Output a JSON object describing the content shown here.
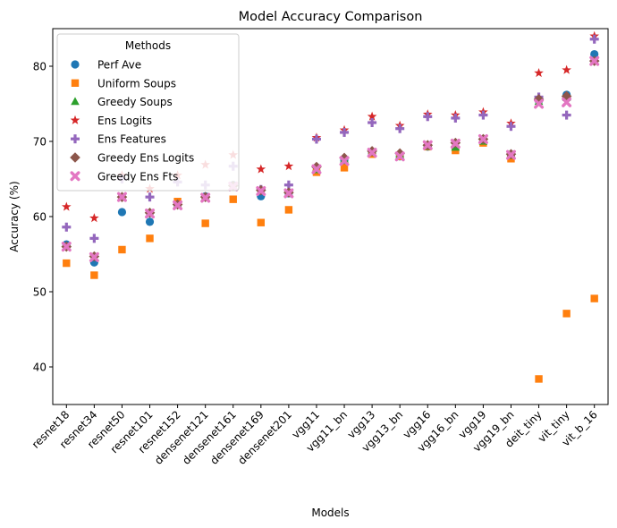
{
  "chart_data": {
    "type": "scatter",
    "title": "Model Accuracy Comparison",
    "xlabel": "Models",
    "ylabel": "Accuracy (%)",
    "ylim": [
      35,
      85
    ],
    "yticks": [
      40,
      50,
      60,
      70,
      80
    ],
    "grid": false,
    "legend_title": "Methods",
    "legend_position": "top-left",
    "categories": [
      "resnet18",
      "resnet34",
      "resnet50",
      "resnet101",
      "resnet152",
      "densenet121",
      "densenet161",
      "densenet169",
      "densenet201",
      "vgg11",
      "vgg11_bn",
      "vgg13",
      "vgg13_bn",
      "vgg16",
      "vgg16_bn",
      "vgg19",
      "vgg19_bn",
      "deit_tiny",
      "vit_tiny",
      "vit_b_16"
    ],
    "series": [
      {
        "name": "Perf Ave",
        "marker": "circle",
        "color": "#1f77b4",
        "values": [
          56.3,
          53.9,
          60.6,
          59.3,
          61.6,
          62.7,
          64.2,
          62.7,
          63.1,
          66.0,
          67.5,
          68.4,
          68.0,
          69.3,
          69.1,
          69.9,
          68.1,
          75.4,
          76.2,
          81.6
        ]
      },
      {
        "name": "Uniform Soups",
        "marker": "square",
        "color": "#ff7f0e",
        "values": [
          53.8,
          52.2,
          55.6,
          57.1,
          62.0,
          59.1,
          62.3,
          59.2,
          60.9,
          65.9,
          66.5,
          68.3,
          68.0,
          69.3,
          68.8,
          69.8,
          67.7,
          38.4,
          47.1,
          49.1
        ]
      },
      {
        "name": "Greedy Soups",
        "marker": "triangle",
        "color": "#2ca02c",
        "values": [
          56.0,
          54.6,
          62.6,
          60.4,
          61.6,
          62.6,
          64.0,
          63.4,
          63.1,
          66.2,
          67.6,
          68.5,
          68.2,
          69.3,
          69.2,
          70.0,
          68.1,
          75.3,
          75.8,
          80.7
        ]
      },
      {
        "name": "Ens Logits",
        "marker": "star",
        "color": "#d62728",
        "values": [
          61.3,
          59.8,
          65.5,
          63.7,
          65.5,
          66.9,
          68.2,
          66.3,
          66.7,
          70.5,
          71.5,
          73.3,
          72.1,
          73.6,
          73.5,
          73.9,
          72.4,
          79.1,
          79.5,
          84.0
        ]
      },
      {
        "name": "Ens Features",
        "marker": "plus",
        "color": "#9467bd",
        "values": [
          58.6,
          57.1,
          65.0,
          62.6,
          64.6,
          64.2,
          66.7,
          63.6,
          64.2,
          70.3,
          71.2,
          72.5,
          71.7,
          73.3,
          73.1,
          73.5,
          72.0,
          75.9,
          73.5,
          83.6
        ]
      },
      {
        "name": "Greedy Ens Logits",
        "marker": "diamond",
        "color": "#8c564b",
        "values": [
          56.0,
          54.7,
          62.6,
          60.5,
          61.6,
          62.6,
          64.1,
          63.5,
          63.2,
          66.6,
          67.8,
          68.7,
          68.4,
          69.5,
          69.8,
          70.3,
          68.3,
          75.6,
          76.0,
          80.7
        ]
      },
      {
        "name": "Greedy Ens Fts",
        "marker": "x",
        "color": "#e377c2",
        "values": [
          56.0,
          54.6,
          62.6,
          60.4,
          61.5,
          62.5,
          64.0,
          63.4,
          63.1,
          66.3,
          67.4,
          68.5,
          68.0,
          69.5,
          69.7,
          70.3,
          68.2,
          75.0,
          75.2,
          80.7
        ]
      }
    ]
  }
}
